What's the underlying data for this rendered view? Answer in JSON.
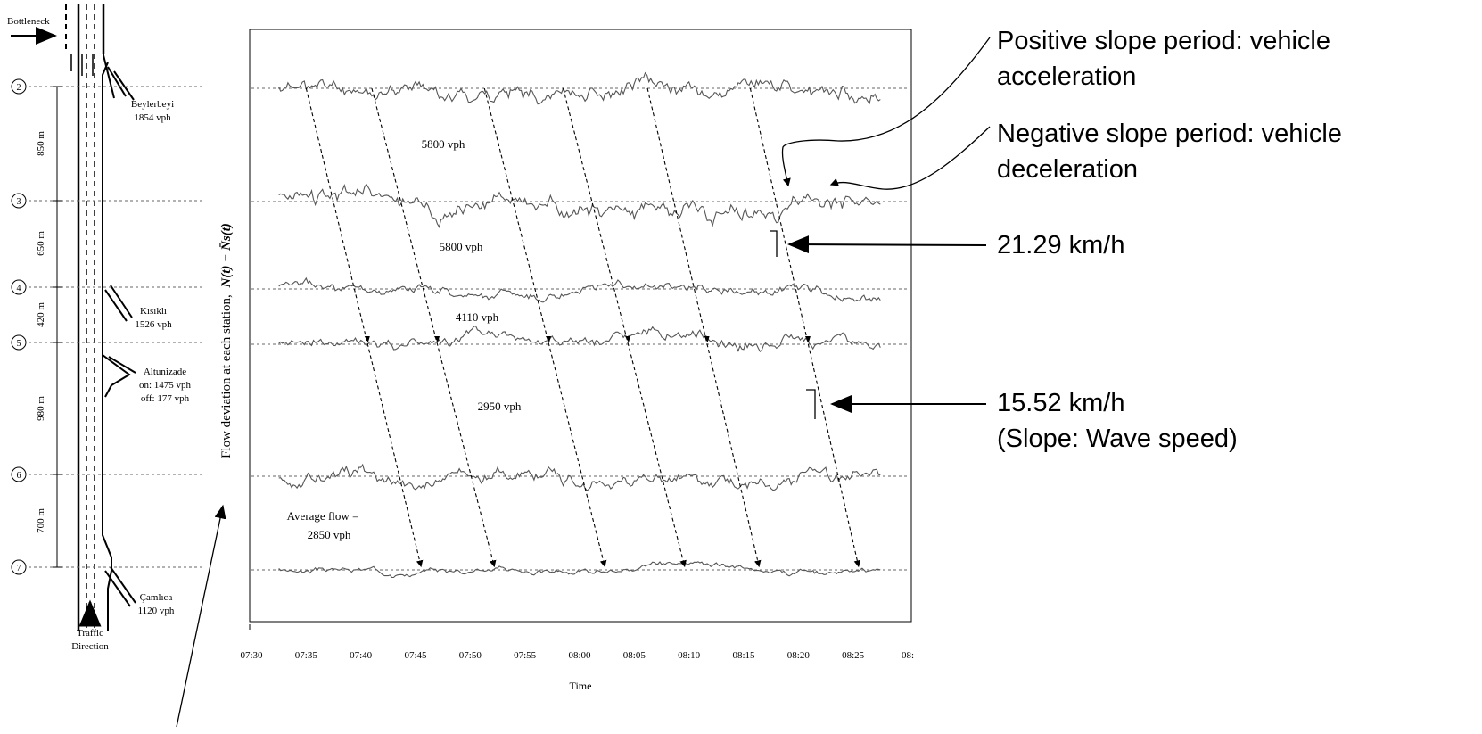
{
  "colors": {
    "ink": "#000000",
    "trace": "#555555",
    "baseline": "#666666",
    "frame": "#000000"
  },
  "schematic": {
    "bottleneck_label": "Bottleneck",
    "stations": [
      "2",
      "3",
      "4",
      "5",
      "6",
      "7"
    ],
    "distances": [
      "850 m",
      "650 m",
      "420 m",
      "980 m",
      "700 m"
    ],
    "ramps": [
      {
        "name": "Beylerbeyi",
        "flow": "1854 vph"
      },
      {
        "name": "Kısıklı",
        "flow": "1526 vph"
      },
      {
        "name": "Altunizade",
        "on": "on: 1475 vph",
        "off": "off: 177 vph"
      },
      {
        "name": "Çamlıca",
        "flow": "1120 vph"
      }
    ],
    "direction_label": [
      "Traffic",
      "Direction"
    ]
  },
  "annotations": {
    "positive_slope": [
      "Positive slope period: vehicle",
      "acceleration"
    ],
    "negative_slope": [
      "Negative slope period: vehicle",
      "deceleration"
    ],
    "speed1": "21.29 km/h",
    "speed2": [
      "15.52 km/h",
      "(Slope: Wave speed)"
    ]
  },
  "chart_data": {
    "type": "line",
    "xlabel": "Time",
    "ylabel_prefix": "Flow deviation at each station,",
    "ylabel_formula": "N(t) − N̄s(t)",
    "x_ticks": [
      "07:30",
      "07:35",
      "07:40",
      "07:45",
      "07:50",
      "07:55",
      "08:00",
      "08:05",
      "08:10",
      "08:15",
      "08:20",
      "08:25",
      "08:"
    ],
    "x_range_minutes": [
      0,
      60
    ],
    "series": [
      {
        "name": "2",
        "seed": 11,
        "amp": 10
      },
      {
        "name": "3",
        "seed": 23,
        "amp": 10
      },
      {
        "name": "4",
        "seed": 37,
        "amp": 7
      },
      {
        "name": "5",
        "seed": 41,
        "amp": 8
      },
      {
        "name": "6",
        "seed": 53,
        "amp": 9
      },
      {
        "name": "7",
        "seed": 67,
        "amp": 5
      }
    ],
    "series_range_minutes": [
      2.5,
      57.5
    ],
    "segment_flows": [
      "5800 vph",
      "5800 vph",
      "4110 vph",
      "2950 vph"
    ],
    "average_flow": [
      "Average flow =",
      "2850 vph"
    ],
    "waves": [
      {
        "start_min": 5.0,
        "end_min": 15.5
      },
      {
        "start_min": 11.0,
        "end_min": 22.2
      },
      {
        "start_min": 21.3,
        "end_min": 32.3
      },
      {
        "start_min": 28.5,
        "end_min": 39.6
      },
      {
        "start_min": 36.2,
        "end_min": 46.4
      },
      {
        "start_min": 45.6,
        "end_min": 55.5
      }
    ]
  }
}
